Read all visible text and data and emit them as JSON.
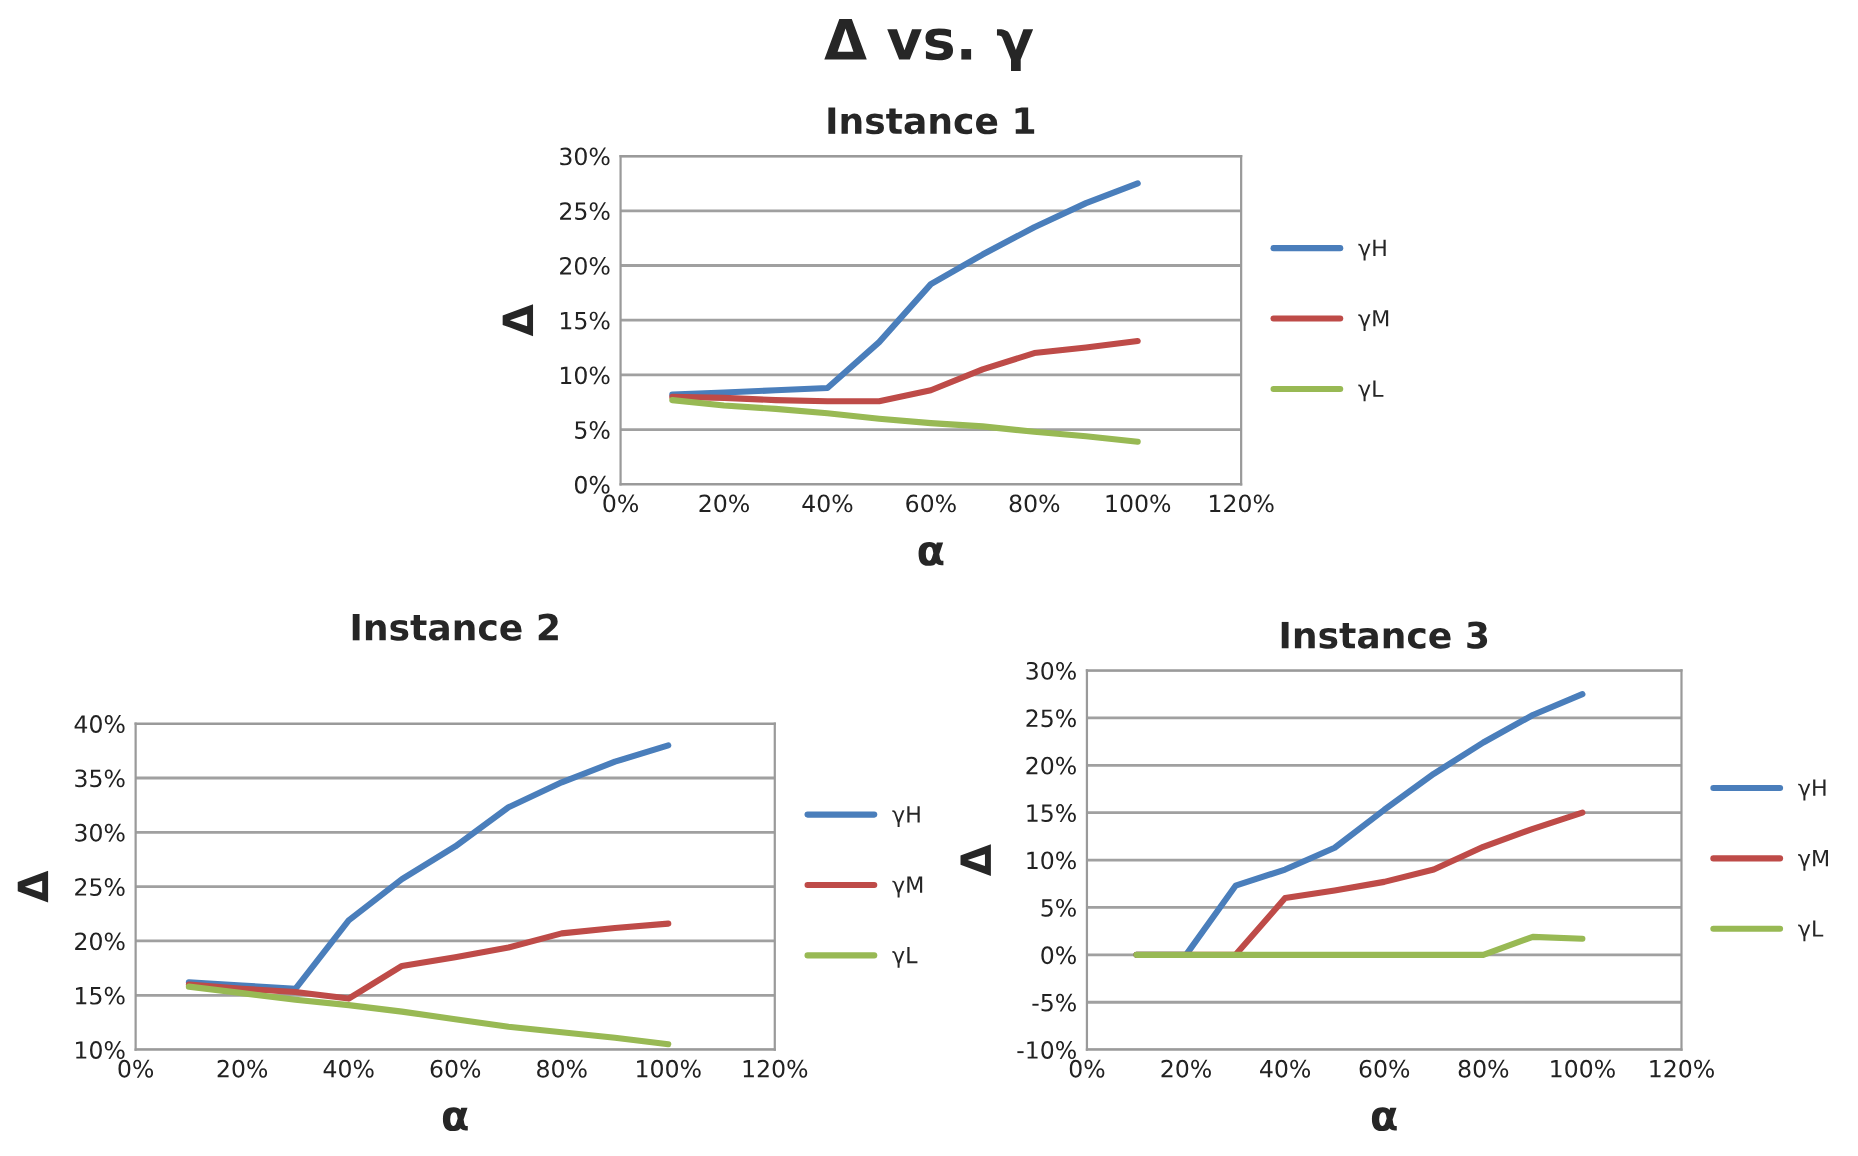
{
  "chart_data": [
    {
      "type": "line",
      "title": "Δ vs. γ",
      "subtitle": "Instance 1",
      "xlabel": "α",
      "ylabel": "Δ",
      "x": [
        10,
        20,
        30,
        40,
        50,
        60,
        70,
        80,
        90,
        100
      ],
      "series": [
        {
          "name": "γH",
          "color": "#4a7ebb",
          "values": [
            8.2,
            8.4,
            8.6,
            8.8,
            13,
            18.3,
            21,
            23.5,
            25.7,
            27.5
          ]
        },
        {
          "name": "γM",
          "color": "#be4b48",
          "values": [
            8,
            7.9,
            7.7,
            7.6,
            7.6,
            8.6,
            10.5,
            12,
            12.5,
            13.1
          ]
        },
        {
          "name": "γL",
          "color": "#98b954",
          "values": [
            7.7,
            7.2,
            6.9,
            6.5,
            6,
            5.6,
            5.3,
            4.8,
            4.4,
            3.9
          ]
        }
      ],
      "xlim": [
        0,
        120
      ],
      "xticks": [
        {
          "value": 0,
          "label": "0%"
        },
        {
          "value": 20,
          "label": "20%"
        },
        {
          "value": 40,
          "label": "40%"
        },
        {
          "value": 60,
          "label": "60%"
        },
        {
          "value": 80,
          "label": "80%"
        },
        {
          "value": 100,
          "label": "100%"
        },
        {
          "value": 120,
          "label": "120%"
        }
      ],
      "ylim": [
        0,
        30
      ],
      "yticks": [
        {
          "value": 0,
          "label": "0%"
        },
        {
          "value": 5,
          "label": "5%"
        },
        {
          "value": 10,
          "label": "10%"
        },
        {
          "value": 15,
          "label": "15%"
        },
        {
          "value": 20,
          "label": "20%"
        },
        {
          "value": 25,
          "label": "25%"
        },
        {
          "value": 30,
          "label": "30%"
        }
      ],
      "grid": "y",
      "legend": "right",
      "marker": "none",
      "line_style": "solid"
    },
    {
      "type": "line",
      "title": "Instance 2",
      "xlabel": "α",
      "ylabel": "Δ",
      "x": [
        10,
        20,
        30,
        40,
        50,
        60,
        70,
        80,
        90,
        100
      ],
      "series": [
        {
          "name": "γH",
          "color": "#4a7ebb",
          "values": [
            16.2,
            15.9,
            15.6,
            21.9,
            25.7,
            28.7,
            32.3,
            34.6,
            36.5,
            38
          ]
        },
        {
          "name": "γM",
          "color": "#be4b48",
          "values": [
            16,
            15.6,
            15.3,
            14.7,
            17.7,
            18.5,
            19.4,
            20.7,
            21.2,
            21.6
          ]
        },
        {
          "name": "γL",
          "color": "#98b954",
          "values": [
            15.8,
            15.2,
            14.6,
            14.1,
            13.5,
            12.8,
            12.1,
            11.6,
            11.1,
            10.5
          ]
        }
      ],
      "xlim": [
        0,
        120
      ],
      "xticks": [
        {
          "value": 0,
          "label": "0%"
        },
        {
          "value": 20,
          "label": "20%"
        },
        {
          "value": 40,
          "label": "40%"
        },
        {
          "value": 60,
          "label": "60%"
        },
        {
          "value": 80,
          "label": "80%"
        },
        {
          "value": 100,
          "label": "100%"
        },
        {
          "value": 120,
          "label": "120%"
        }
      ],
      "ylim": [
        10,
        40
      ],
      "yticks": [
        {
          "value": 10,
          "label": "10%"
        },
        {
          "value": 15,
          "label": "15%"
        },
        {
          "value": 20,
          "label": "20%"
        },
        {
          "value": 25,
          "label": "25%"
        },
        {
          "value": 30,
          "label": "30%"
        },
        {
          "value": 35,
          "label": "35%"
        },
        {
          "value": 40,
          "label": "40%"
        }
      ],
      "grid": "y",
      "legend": "right",
      "marker": "none",
      "line_style": "solid"
    },
    {
      "type": "line",
      "title": "Instance 3",
      "xlabel": "α",
      "ylabel": "Δ",
      "x": [
        10,
        20,
        30,
        40,
        50,
        60,
        70,
        80,
        90,
        100
      ],
      "series": [
        {
          "name": "γH",
          "color": "#4a7ebb",
          "values": [
            0,
            0,
            7.3,
            9,
            11.3,
            15.3,
            19.1,
            22.4,
            25.3,
            27.5
          ]
        },
        {
          "name": "γM",
          "color": "#be4b48",
          "values": [
            0,
            0,
            0,
            6,
            6.8,
            7.7,
            9,
            11.4,
            13.3,
            15
          ]
        },
        {
          "name": "γL",
          "color": "#98b954",
          "values": [
            0,
            0,
            0,
            0,
            0,
            0,
            0,
            0,
            1.9,
            1.7
          ]
        }
      ],
      "xlim": [
        0,
        120
      ],
      "xticks": [
        {
          "value": 0,
          "label": "0%"
        },
        {
          "value": 20,
          "label": "20%"
        },
        {
          "value": 40,
          "label": "40%"
        },
        {
          "value": 60,
          "label": "60%"
        },
        {
          "value": 80,
          "label": "80%"
        },
        {
          "value": 100,
          "label": "100%"
        },
        {
          "value": 120,
          "label": "120%"
        }
      ],
      "ylim": [
        -10,
        30
      ],
      "yticks": [
        {
          "value": -10,
          "label": "-10%"
        },
        {
          "value": -5,
          "label": "-5%"
        },
        {
          "value": 0,
          "label": "0%"
        },
        {
          "value": 5,
          "label": "5%"
        },
        {
          "value": 10,
          "label": "10%"
        },
        {
          "value": 15,
          "label": "15%"
        },
        {
          "value": 20,
          "label": "20%"
        },
        {
          "value": 25,
          "label": "25%"
        },
        {
          "value": 30,
          "label": "30%"
        }
      ],
      "grid": "y",
      "legend": "right",
      "marker": "none",
      "line_style": "solid"
    }
  ]
}
